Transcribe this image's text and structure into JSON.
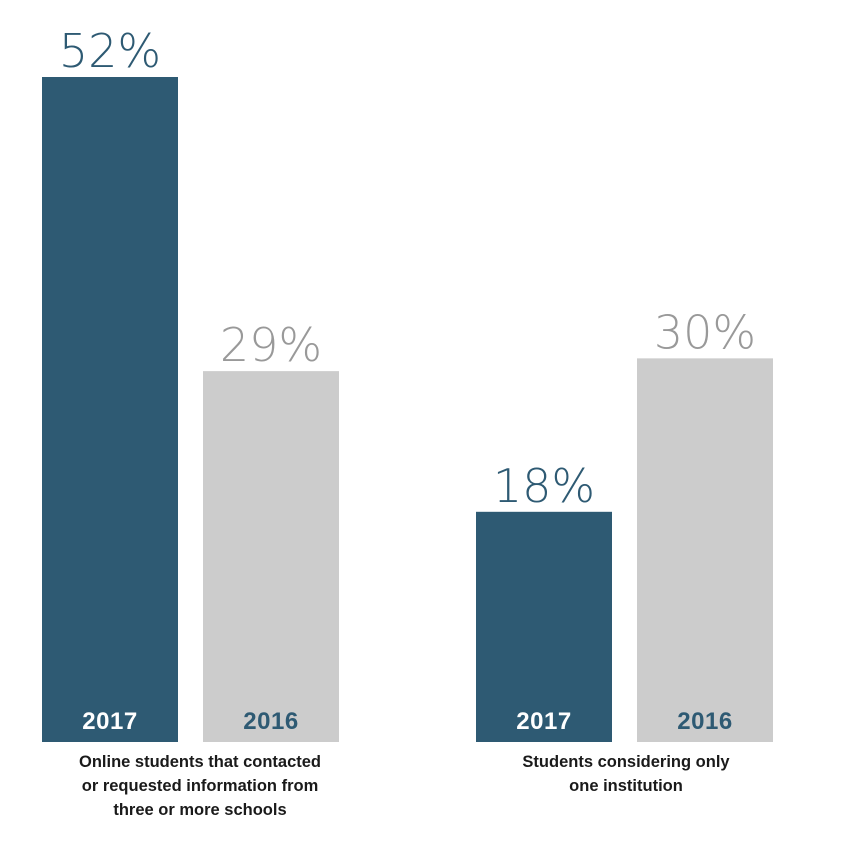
{
  "chart_data": {
    "type": "bar",
    "ylim": [
      0,
      52
    ],
    "colors": {
      "2017": "#2e5a73",
      "2016": "#cccccc"
    },
    "value_label_colors": {
      "2017": "#2e5a73",
      "2016": "#999999"
    },
    "year_label_colors": {
      "2017": "#ffffff",
      "2016": "#2e5a73"
    },
    "groups": [
      {
        "label_lines": [
          "Online students that contacted",
          "or requested information from",
          "three or more schools"
        ],
        "bars": [
          {
            "year": "2017",
            "value": 52,
            "label": "52%"
          },
          {
            "year": "2016",
            "value": 29,
            "label": "29%"
          }
        ]
      },
      {
        "label_lines": [
          "Students considering only",
          "one institution"
        ],
        "bars": [
          {
            "year": "2017",
            "value": 18,
            "label": "18%"
          },
          {
            "year": "2016",
            "value": 30,
            "label": "30%"
          }
        ]
      }
    ]
  }
}
